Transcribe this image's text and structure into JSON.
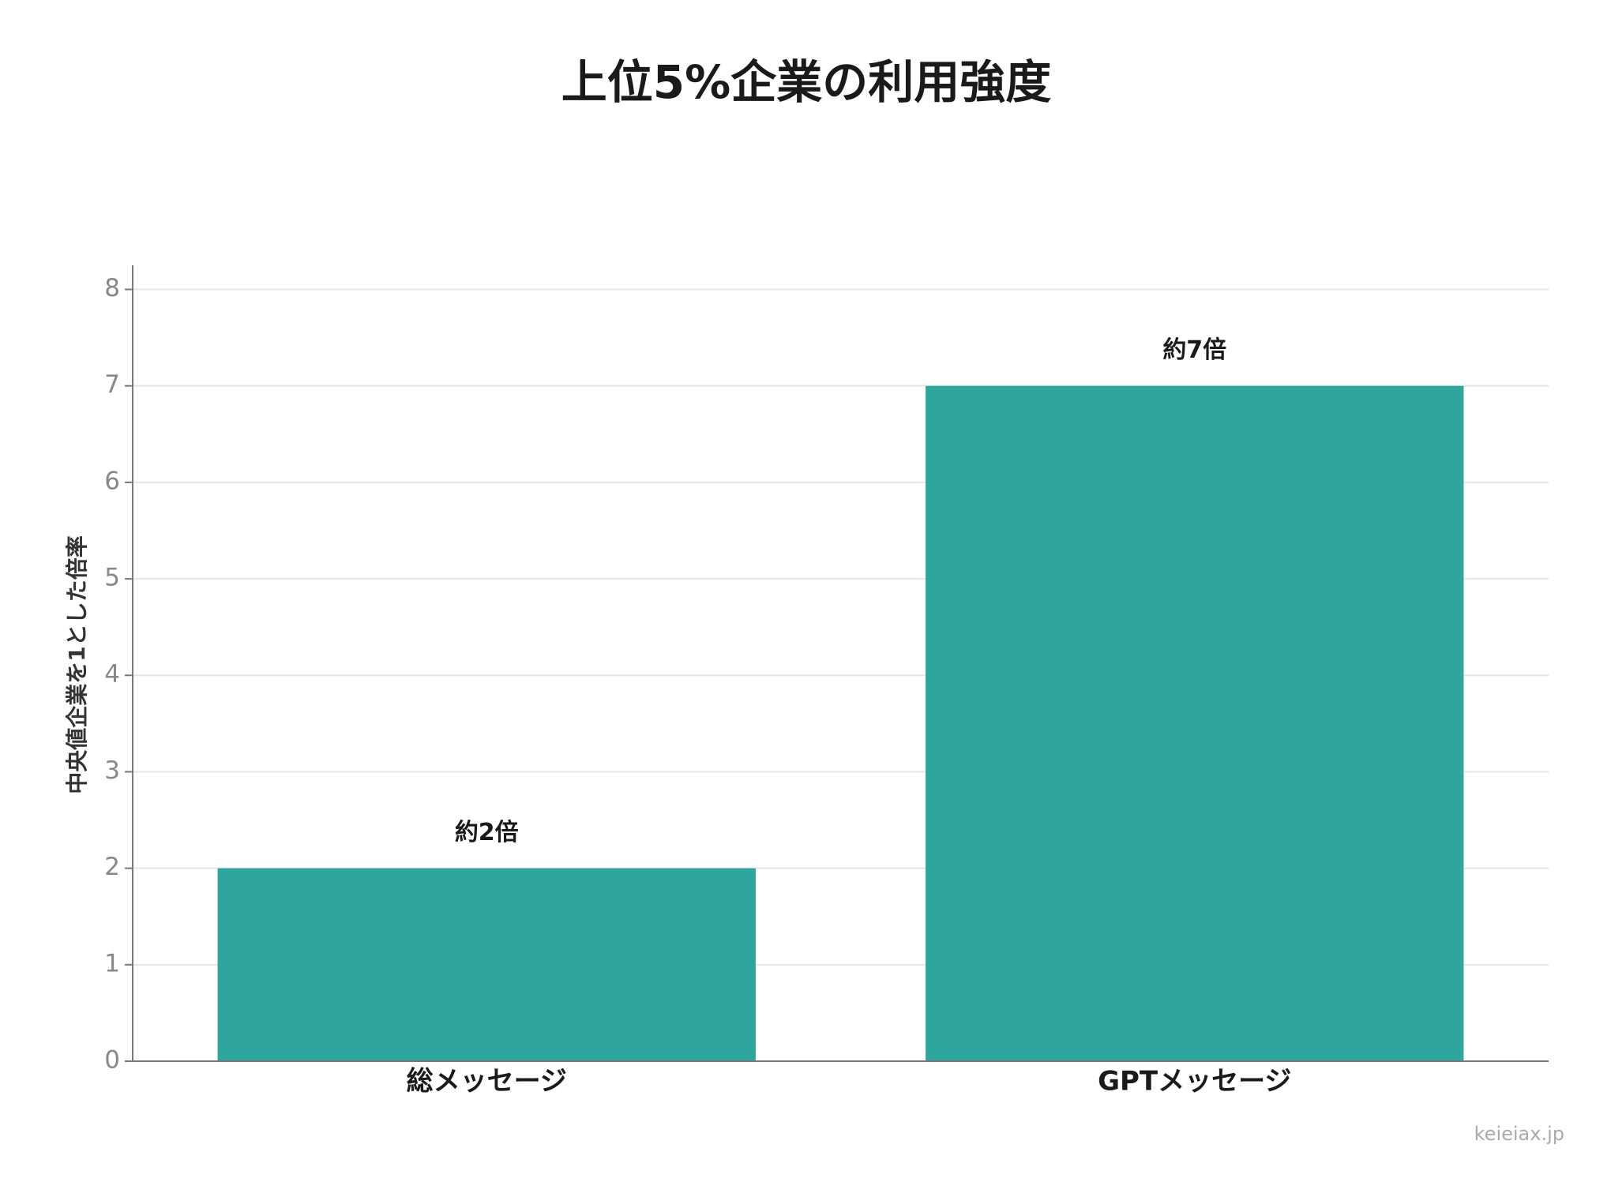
{
  "chart_data": {
    "type": "bar",
    "title": "上位5%企業の利用強度",
    "y_label": "中央値企業を1とした倍率",
    "categories": [
      "総メッセージ",
      "GPTメッセージ"
    ],
    "values": [
      2,
      7
    ],
    "value_labels": [
      "約2倍",
      "約7倍"
    ],
    "color": "#2ea59d",
    "ylim": [
      0,
      8.25
    ],
    "yticks": [
      0,
      1,
      2,
      3,
      4,
      5,
      6,
      7,
      8
    ],
    "grid": true,
    "watermark": "keieiax.jp"
  }
}
